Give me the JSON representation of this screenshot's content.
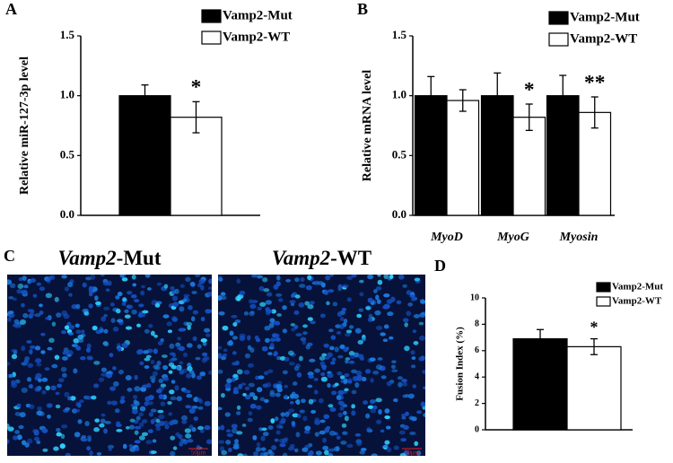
{
  "chart_data": [
    {
      "type": "bar",
      "ylabel": "Relative miR-127-3p level",
      "categories": [
        null
      ],
      "series": [
        {
          "name": "Vamp2-Mut",
          "color": "#000000",
          "values": [
            1.0
          ],
          "errors": [
            0.09
          ]
        },
        {
          "name": "Vamp2-WT",
          "color": "#ffffff",
          "values": [
            0.82
          ],
          "errors": [
            0.13
          ]
        }
      ],
      "significance": [
        "*"
      ],
      "ylim": [
        0,
        1.5
      ],
      "yticks": [
        {
          "value": 0,
          "label": "0.0"
        },
        {
          "value": 0.5,
          "label": "0.5"
        },
        {
          "value": 1,
          "label": "1.0"
        },
        {
          "value": 1.5,
          "label": "1.5"
        }
      ]
    },
    {
      "type": "bar",
      "ylabel": "Relative mRNA level",
      "categories": [
        "MyoD",
        "MyoG",
        "Myosin"
      ],
      "series": [
        {
          "name": "Vamp2-Mut",
          "color": "#000000",
          "values": [
            1.0,
            1.0,
            1.0
          ],
          "errors": [
            0.16,
            0.19,
            0.17
          ]
        },
        {
          "name": "Vamp2-WT",
          "color": "#ffffff",
          "values": [
            0.96,
            0.82,
            0.86
          ],
          "errors": [
            0.09,
            0.11,
            0.13
          ]
        }
      ],
      "significance": [
        null,
        "*",
        "**"
      ],
      "ylim": [
        0,
        1.5
      ],
      "yticks": [
        {
          "value": 0,
          "label": "0.0"
        },
        {
          "value": 0.5,
          "label": "0.5"
        },
        {
          "value": 1,
          "label": "1.0"
        },
        {
          "value": 1.5,
          "label": "1.5"
        }
      ]
    },
    {
      "type": "bar",
      "ylabel": "Fusion Index (%)",
      "categories": [
        null
      ],
      "series": [
        {
          "name": "Vamp2-Mut",
          "color": "#000000",
          "values": [
            6.9
          ],
          "errors": [
            0.7
          ]
        },
        {
          "name": "Vamp2-WT",
          "color": "#ffffff",
          "values": [
            6.3
          ],
          "errors": [
            0.6
          ]
        }
      ],
      "significance": [
        "*"
      ],
      "ylim": [
        0,
        10
      ],
      "yticks": [
        0,
        2,
        4,
        6,
        8,
        10
      ]
    }
  ],
  "panel_labels": [
    "A",
    "B",
    "C",
    "D"
  ],
  "images": [
    {
      "gene": "Vamp2",
      "suffix": "-Mut",
      "scale_bar": "50μm"
    },
    {
      "gene": "Vamp2",
      "suffix": "-WT",
      "scale_bar": "50μm"
    }
  ]
}
